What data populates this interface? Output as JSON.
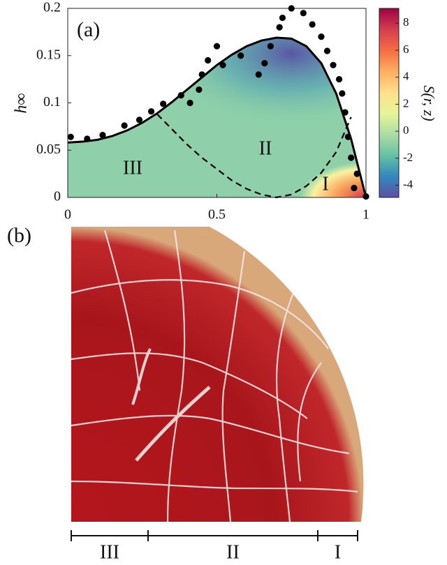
{
  "chart_data": {
    "type": "scatter",
    "panel_label": "(a)",
    "y_label": "h∞",
    "xlim": [
      0,
      1
    ],
    "xticks": [
      0,
      0.5,
      1
    ],
    "ylim": [
      0,
      0.2
    ],
    "yticks": [
      0,
      0.05,
      0.1,
      0.15,
      0.2
    ],
    "region_labels": [
      "III",
      "II",
      "I"
    ],
    "series": [
      {
        "kind": "scatter",
        "color": "#000000",
        "x": [
          0.01,
          0.065,
          0.117,
          0.19,
          0.24,
          0.28,
          0.32,
          0.38,
          0.41,
          0.44,
          0.45,
          0.47,
          0.5,
          0.52,
          0.58,
          0.64,
          0.66,
          0.68,
          0.71,
          0.72,
          0.75,
          0.79,
          0.82,
          0.85,
          0.87,
          0.89,
          0.91,
          0.92,
          0.93,
          0.94,
          0.95,
          0.97,
          0.96,
          1.0
        ],
        "values": [
          0.064,
          0.062,
          0.066,
          0.076,
          0.082,
          0.091,
          0.099,
          0.108,
          0.1,
          0.114,
          0.13,
          0.145,
          0.16,
          0.14,
          0.15,
          0.13,
          0.142,
          0.16,
          0.18,
          0.19,
          0.2,
          0.195,
          0.183,
          0.17,
          0.155,
          0.14,
          0.125,
          0.11,
          0.09,
          0.064,
          0.042,
          0.025,
          0.01,
          0.001
        ]
      },
      {
        "kind": "line",
        "color": "#000000",
        "dash": false,
        "x": [
          0,
          0.05,
          0.1,
          0.15,
          0.2,
          0.25,
          0.3,
          0.35,
          0.4,
          0.45,
          0.5,
          0.55,
          0.6,
          0.65,
          0.7,
          0.75,
          0.8,
          0.85,
          0.9,
          0.95,
          1
        ],
        "values": [
          0.058,
          0.059,
          0.061,
          0.065,
          0.071,
          0.079,
          0.089,
          0.101,
          0.114,
          0.127,
          0.14,
          0.151,
          0.16,
          0.166,
          0.169,
          0.168,
          0.16,
          0.142,
          0.11,
          0.062,
          0
        ]
      },
      {
        "kind": "line",
        "color": "#000000",
        "dash": true,
        "x": [
          0.3,
          0.35,
          0.4,
          0.45,
          0.5,
          0.55,
          0.6,
          0.65,
          0.7,
          0.75,
          0.8,
          0.85,
          0.9,
          0.95
        ],
        "values": [
          0.088,
          0.072,
          0.056,
          0.042,
          0.03,
          0.018,
          0.009,
          0.003,
          0,
          0.003,
          0.012,
          0.026,
          0.048,
          0.085
        ]
      }
    ],
    "colorbar": {
      "label": "S(r, z)",
      "lim": [
        -4.9,
        9.1
      ],
      "ticks": [
        -4,
        -2,
        0,
        2,
        4,
        6,
        8
      ],
      "colors": [
        "#5e4fa2",
        "#3288bd",
        "#66c2a5",
        "#abdda4",
        "#e6f598",
        "#fee08b",
        "#fdae61",
        "#f46d43",
        "#d53e4f",
        "#9e0142"
      ]
    }
  },
  "panel_b": {
    "panel_label": "(b)",
    "region_labels": [
      "III",
      "II",
      "I"
    ]
  }
}
